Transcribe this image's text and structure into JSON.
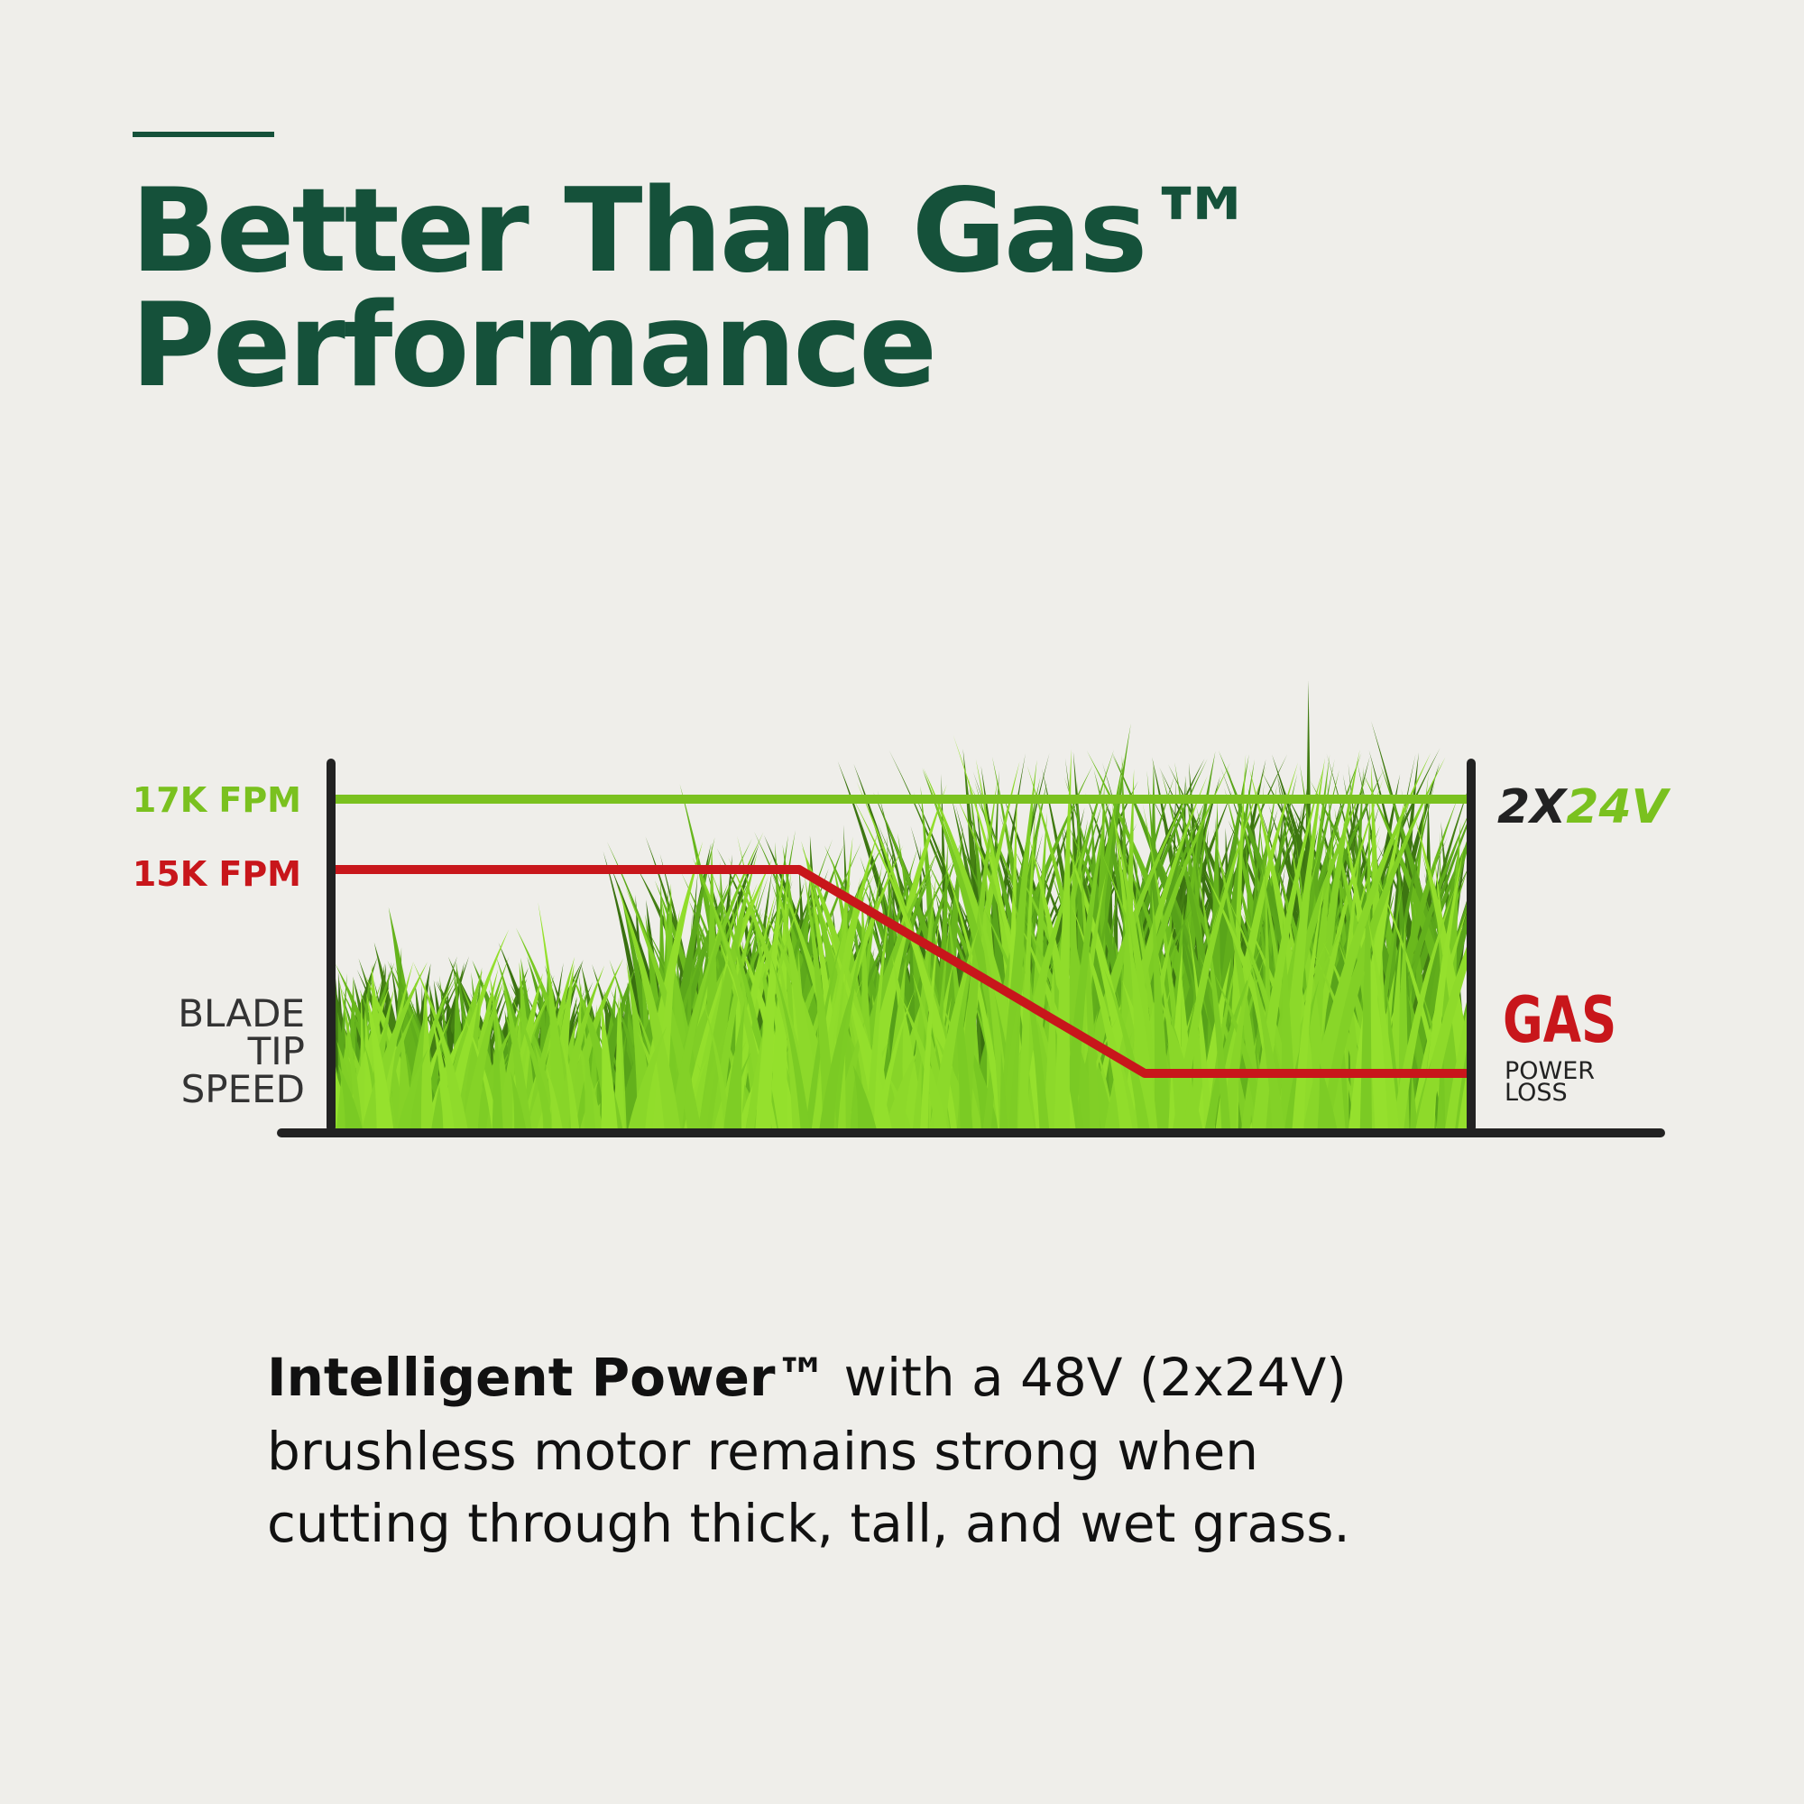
{
  "header": {
    "title_line1": "Better Than Gas™",
    "title_line2": "Performance"
  },
  "graph": {
    "label_top": "17K FPM",
    "label_mid": "15K FPM",
    "axis_label": [
      "BLADE",
      "TIP",
      "SPEED"
    ],
    "brand_a": "2X",
    "brand_b": "24V",
    "gas_label": "GAS",
    "gas_sublabel": [
      "POWER",
      "LOSS"
    ]
  },
  "body": {
    "bold": "Intelligent Power™",
    "lines": [
      "with a 48V (2x24V)",
      "brushless motor remains strong when",
      "cutting through thick, tall, and wet grass."
    ]
  }
}
